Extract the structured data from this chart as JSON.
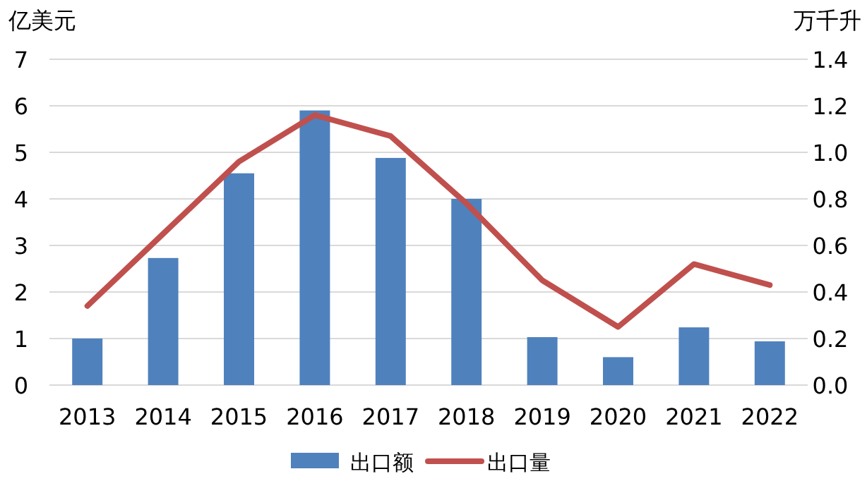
{
  "chart_data": {
    "type": "bar",
    "ylabel": "亿美元",
    "y2label": "万千升",
    "categories": [
      "2013",
      "2014",
      "2015",
      "2016",
      "2017",
      "2018",
      "2019",
      "2020",
      "2021",
      "2022"
    ],
    "series": [
      {
        "name": "出口额",
        "color": "#4f81bd",
        "values": [
          1.0,
          2.73,
          4.55,
          5.9,
          4.88,
          4.0,
          1.03,
          0.6,
          1.24,
          0.94
        ]
      },
      {
        "name": "出口量",
        "type": "line",
        "axis": "y2",
        "color": "#c0504d",
        "values": [
          0.34,
          0.65,
          0.96,
          1.16,
          1.07,
          0.78,
          0.45,
          0.25,
          0.52,
          0.43
        ]
      }
    ],
    "ylim": [
      0,
      7
    ],
    "yticks": [
      0,
      1,
      2,
      3,
      4,
      5,
      6,
      7
    ],
    "y2lim": [
      0,
      1.4
    ],
    "y2ticks": [
      {
        "value": 0,
        "label": "0.0"
      },
      {
        "value": 0.2,
        "label": "0.2"
      },
      {
        "value": 0.4,
        "label": "0.4"
      },
      {
        "value": 0.6,
        "label": "0.6"
      },
      {
        "value": 0.8,
        "label": "0.8"
      },
      {
        "value": 1.0,
        "label": "1.0"
      },
      {
        "value": 1.2,
        "label": "1.2"
      },
      {
        "value": 1.4,
        "label": "1.4"
      }
    ],
    "grid": "y",
    "legend": "bottom",
    "line_style": "solid",
    "marker": "none"
  }
}
